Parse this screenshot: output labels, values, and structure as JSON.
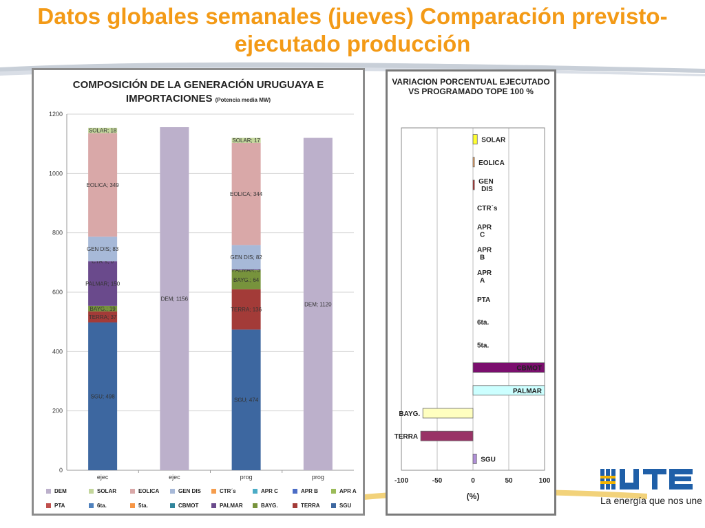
{
  "title": "Datos globales semanales  (jueves) Comparación previsto-ejecutado producción",
  "logo": {
    "name": "UTE",
    "tagline": "La energía que nos une"
  },
  "colors": {
    "title": "#F39A16",
    "DEM": "#BCB0CB",
    "SOLAR": "#C3D69B",
    "EOLICA": "#D9A8A8",
    "GEN DIS": "#A7B9D8",
    "CTR´s": "#F59D4D",
    "APR C": "#4BACC6",
    "APR B": "#4B6DC6",
    "APR A": "#9BBB59",
    "PTA": "#C0504D",
    "6ta.": "#4F81BD",
    "5ta.": "#F79646",
    "CBMOT": "#31859C",
    "PALMAR": "#6A4A8C",
    "BAYG.": "#77933C",
    "TERRA": "#A33B38",
    "SGU": "#3D67A0"
  },
  "chart_data": [
    {
      "type": "bar",
      "stacked": true,
      "title": "COMPOSICIÓN DE LA GENERACIÓN URUGUAYA E IMPORTACIONES",
      "subtitle": "(Potencia media MW)",
      "categories": [
        "ejec",
        "ejec",
        "prog",
        "prog"
      ],
      "ylim": [
        0,
        1200
      ],
      "yticks": [
        0,
        200,
        400,
        600,
        800,
        1000,
        1200
      ],
      "grid": true,
      "legend_position": "bottom",
      "legend": [
        "DEM",
        "SOLAR",
        "EOLICA",
        "GEN DIS",
        "CTR´s",
        "APR C",
        "APR B",
        "APR A",
        "PTA",
        "6ta.",
        "5ta.",
        "CBMOT",
        "PALMAR",
        "BAYG.",
        "TERRA",
        "SGU"
      ],
      "stack_order": [
        "SGU",
        "TERRA",
        "BAYG.",
        "PALMAR",
        "CTR´s",
        "GEN DIS",
        "EOLICA",
        "SOLAR",
        "DEM"
      ],
      "series": [
        {
          "name": "SGU",
          "values": [
            498,
            null,
            474,
            null
          ],
          "labels": [
            "SGU; 498",
            "",
            "SGU; 474",
            ""
          ]
        },
        {
          "name": "TERRA",
          "values": [
            37,
            null,
            136,
            null
          ],
          "labels": [
            "TERRA; 37",
            "",
            "TERRA; 136",
            ""
          ]
        },
        {
          "name": "BAYG.",
          "values": [
            19,
            null,
            64,
            null
          ],
          "labels": [
            "BAYG.; 19",
            "",
            "BAYG.; 64",
            ""
          ]
        },
        {
          "name": "PALMAR",
          "values": [
            150,
            null,
            3,
            null
          ],
          "labels": [
            "PALMAR; 150",
            "",
            "PALMAR; 3",
            ""
          ]
        },
        {
          "name": "CTR´s",
          "values": [
            0,
            null,
            0,
            null
          ],
          "labels": [
            "CTR´s; 0",
            "",
            "",
            ""
          ]
        },
        {
          "name": "GEN DIS",
          "values": [
            83,
            null,
            82,
            null
          ],
          "labels": [
            "GEN DIS; 83",
            "",
            "GEN DIS; 82",
            ""
          ]
        },
        {
          "name": "EOLICA",
          "values": [
            349,
            null,
            344,
            null
          ],
          "labels": [
            "EOLICA; 349",
            "",
            "EOLICA; 344",
            ""
          ]
        },
        {
          "name": "SOLAR",
          "values": [
            18,
            null,
            17,
            null
          ],
          "labels": [
            "SOLAR; 18",
            "",
            "SOLAR; 17",
            ""
          ]
        },
        {
          "name": "DEM",
          "values": [
            null,
            1156,
            null,
            1120
          ],
          "labels": [
            "",
            "DEM; 1156",
            "",
            "DEM; 1120"
          ]
        }
      ]
    },
    {
      "type": "bar",
      "orientation": "horizontal",
      "title": "VARIACION PORCENTUAL EJECUTADO VS PROGRAMADO TOPE 100 %",
      "xlabel": "(%)",
      "xlim": [
        -100,
        100
      ],
      "xticks": [
        -100,
        -50,
        0,
        50,
        100
      ],
      "grid": true,
      "categories": [
        "SOLAR",
        "EOLICA",
        "GEN DIS",
        "CTR´s",
        "APR C",
        "APR B",
        "APR A",
        "PTA",
        "6ta.",
        "5ta.",
        "CBMOT",
        "PALMAR",
        "BAYG.",
        "TERRA",
        "SGU"
      ],
      "values": [
        6,
        2,
        2,
        0,
        0,
        0,
        0,
        0,
        0,
        0,
        100,
        100,
        -70,
        -73,
        5
      ],
      "bar_colors": [
        "#FFFF33",
        "#F4A460",
        "#B22222",
        null,
        null,
        null,
        null,
        null,
        null,
        null,
        "#7B0F6E",
        "#CCFFFF",
        "#FFFFC0",
        "#993366",
        "#B08FD8"
      ]
    }
  ]
}
